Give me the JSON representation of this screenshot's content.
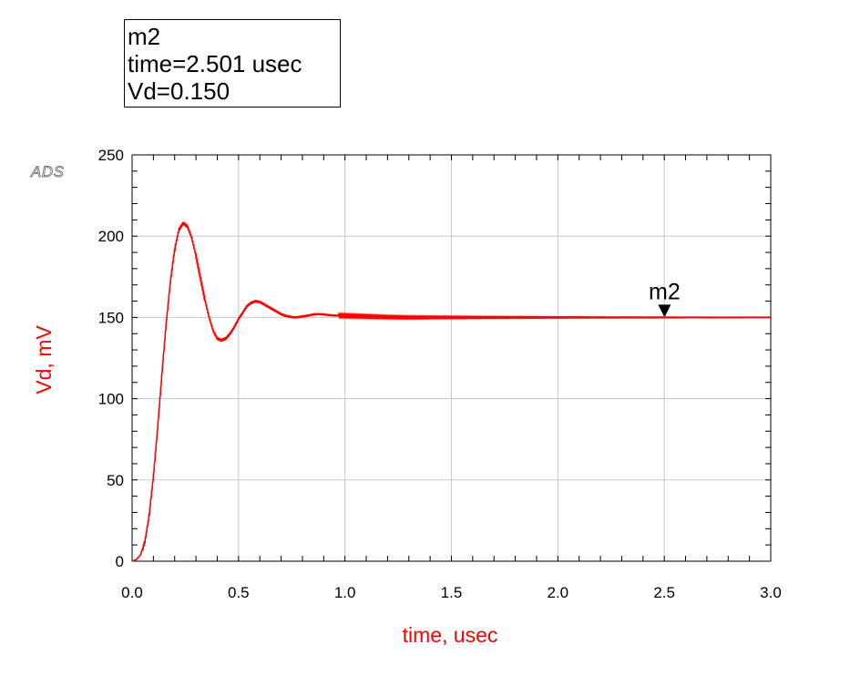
{
  "marker": {
    "name": "m2",
    "time_line": "time=2.501 usec",
    "value_line": "Vd=0.150"
  },
  "logo": "ADS",
  "chart_data": {
    "type": "line",
    "title": "",
    "xlabel": "time, usec",
    "ylabel": "Vd, mV",
    "xlim": [
      0,
      3.0
    ],
    "ylim": [
      0,
      250
    ],
    "x_ticks": [
      "0.0",
      "0.5",
      "1.0",
      "1.5",
      "2.0",
      "2.5",
      "3.0"
    ],
    "y_ticks": [
      "0",
      "50",
      "100",
      "150",
      "200",
      "250"
    ],
    "grid": true,
    "legend": "none",
    "line_color": "#ff0000",
    "series": [
      {
        "x": [
          0.0,
          0.02,
          0.04,
          0.06,
          0.08,
          0.1,
          0.12,
          0.14,
          0.16,
          0.18,
          0.2,
          0.22,
          0.24,
          0.26,
          0.28,
          0.3,
          0.32,
          0.34,
          0.36,
          0.38,
          0.4,
          0.42,
          0.44,
          0.46,
          0.48,
          0.5,
          0.52,
          0.54,
          0.56,
          0.58,
          0.6,
          0.62,
          0.64,
          0.66,
          0.68,
          0.7,
          0.72,
          0.74,
          0.76,
          0.78,
          0.8,
          0.82,
          0.84,
          0.86,
          0.88,
          0.9,
          0.92,
          0.95,
          1.0,
          1.05,
          1.1,
          1.15,
          1.2,
          1.3,
          1.4,
          1.5,
          1.6,
          1.8,
          2.0,
          2.2,
          2.5,
          2.8,
          3.0
        ],
        "y": [
          0,
          1,
          4,
          12,
          28,
          52,
          82,
          115,
          146,
          172,
          192,
          204,
          208,
          206,
          199,
          188,
          175,
          162,
          151,
          142,
          137,
          136,
          137,
          140,
          144,
          149,
          153,
          157,
          159,
          160,
          159.5,
          158,
          156.5,
          155,
          153.5,
          152,
          151,
          150.5,
          150,
          150.2,
          150.6,
          151,
          151.5,
          152,
          152,
          151.8,
          151.5,
          151.2,
          151,
          150.8,
          150.6,
          150.4,
          150.2,
          150,
          150,
          150,
          150,
          150,
          150,
          150,
          150,
          150,
          150
        ]
      }
    ],
    "markers": [
      {
        "name": "m2",
        "x": 2.501,
        "y": 150
      }
    ]
  }
}
